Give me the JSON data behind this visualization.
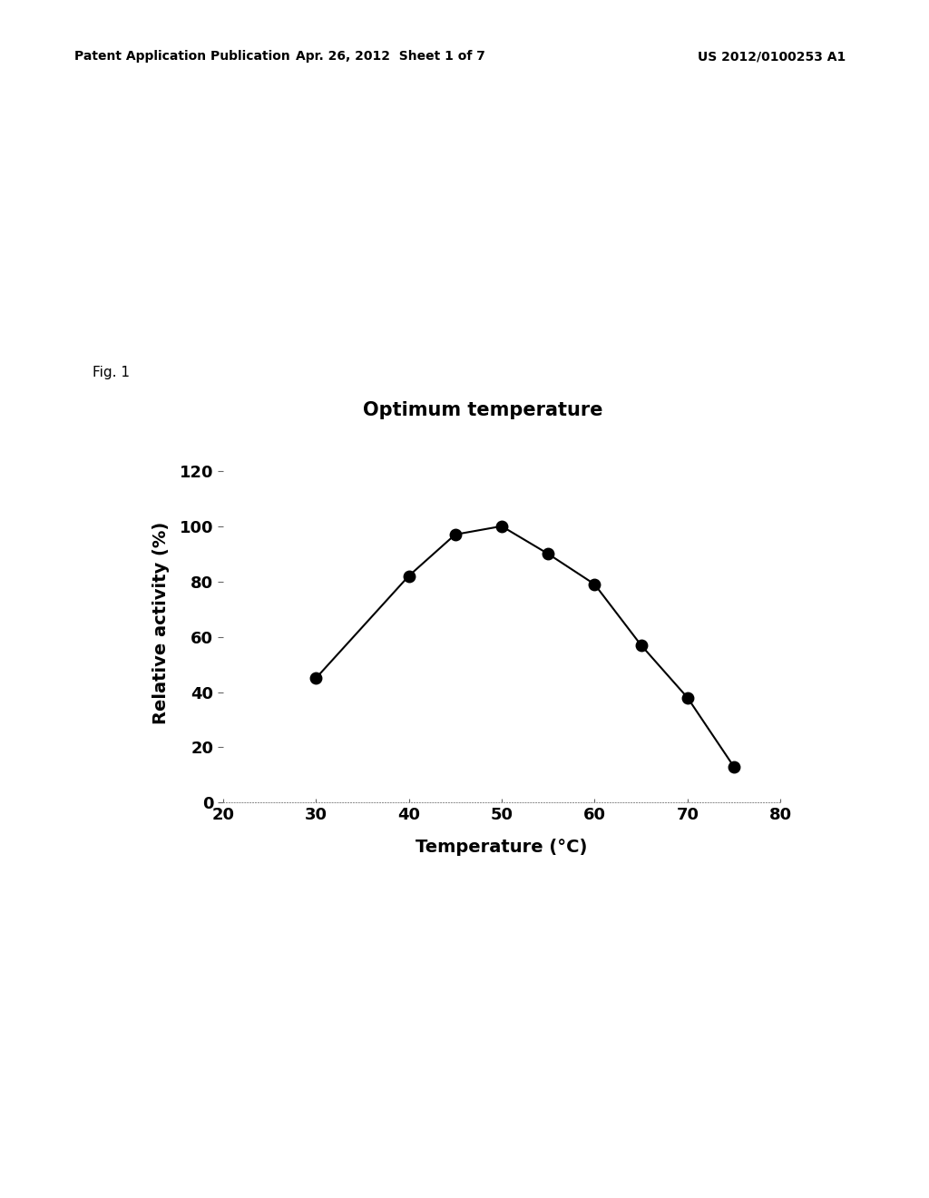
{
  "title": "Optimum temperature",
  "xlabel": "Temperature (°C)",
  "ylabel": "Relative activity (%)",
  "x_data": [
    30,
    40,
    45,
    50,
    55,
    60,
    65,
    70,
    75
  ],
  "y_data": [
    45,
    82,
    97,
    100,
    90,
    79,
    57,
    38,
    13
  ],
  "xlim": [
    20,
    80
  ],
  "ylim": [
    0,
    130
  ],
  "xticks": [
    20,
    30,
    40,
    50,
    60,
    70,
    80
  ],
  "yticks": [
    0,
    20,
    40,
    60,
    80,
    100,
    120
  ],
  "line_color": "#000000",
  "marker_color": "#000000",
  "marker_size": 9,
  "line_width": 1.5,
  "background_color": "#ffffff",
  "header_left": "Patent Application Publication",
  "header_center": "Apr. 26, 2012  Sheet 1 of 7",
  "header_right": "US 2012/0100253 A1",
  "fig_label": "Fig. 1",
  "title_fontsize": 15,
  "axis_label_fontsize": 14,
  "tick_fontsize": 13,
  "header_fontsize": 10,
  "fig_label_fontsize": 11
}
